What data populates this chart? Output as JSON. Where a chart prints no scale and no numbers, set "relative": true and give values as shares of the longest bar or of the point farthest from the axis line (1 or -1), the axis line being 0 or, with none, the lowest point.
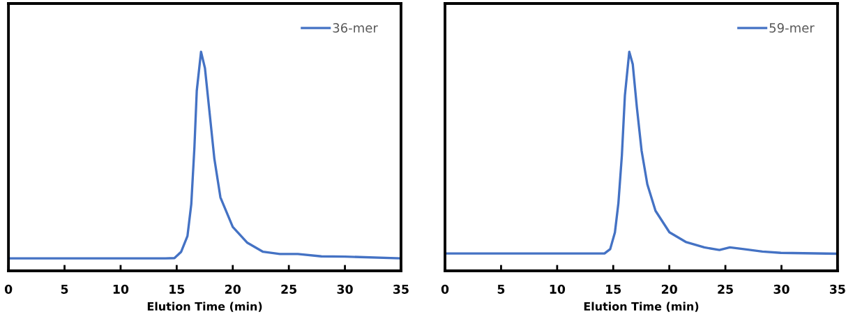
{
  "chart_data": [
    {
      "type": "line",
      "relative": true,
      "xlabel": "Elution Time (min)",
      "xlim": [
        0,
        35
      ],
      "xticks": [
        0,
        5,
        10,
        15,
        20,
        25,
        30,
        35
      ],
      "tick_labels": "x",
      "grid": false,
      "legend": "top right",
      "x": [
        0,
        5,
        10,
        14,
        14.8,
        15.4,
        15.96,
        16.3,
        16.58,
        16.79,
        17.17,
        17.52,
        17.94,
        18.36,
        18.9,
        20.0,
        21.3,
        22.7,
        24.2,
        25.8,
        27.9,
        30,
        35
      ],
      "series": [
        {
          "name": "36-mer",
          "color": "#4472c4",
          "values": [
            0.057,
            0.057,
            0.057,
            0.057,
            0.058,
            0.087,
            0.159,
            0.304,
            0.563,
            0.822,
            1.0,
            0.925,
            0.718,
            0.511,
            0.335,
            0.2,
            0.128,
            0.087,
            0.077,
            0.077,
            0.066,
            0.065,
            0.057
          ]
        }
      ]
    },
    {
      "type": "line",
      "relative": true,
      "xlabel": "Elution Time (min)",
      "xlim": [
        0,
        35
      ],
      "xticks": [
        0,
        5,
        10,
        15,
        20,
        25,
        30,
        35
      ],
      "tick_labels": "x",
      "grid": false,
      "legend": "top right",
      "x": [
        0,
        5,
        10,
        14.22,
        14.73,
        15.15,
        15.46,
        15.77,
        16.04,
        16.43,
        16.74,
        17.11,
        17.53,
        18.04,
        18.77,
        20.01,
        21.46,
        23.12,
        24.47,
        25.4,
        26.64,
        28.3,
        29.95,
        35
      ],
      "series": [
        {
          "name": "59-mer",
          "color": "#4472c4",
          "values": [
            0.079,
            0.079,
            0.079,
            0.079,
            0.099,
            0.175,
            0.308,
            0.526,
            0.8,
            1.0,
            0.943,
            0.745,
            0.548,
            0.395,
            0.274,
            0.176,
            0.132,
            0.107,
            0.095,
            0.107,
            0.099,
            0.088,
            0.082,
            0.078
          ]
        }
      ]
    }
  ]
}
